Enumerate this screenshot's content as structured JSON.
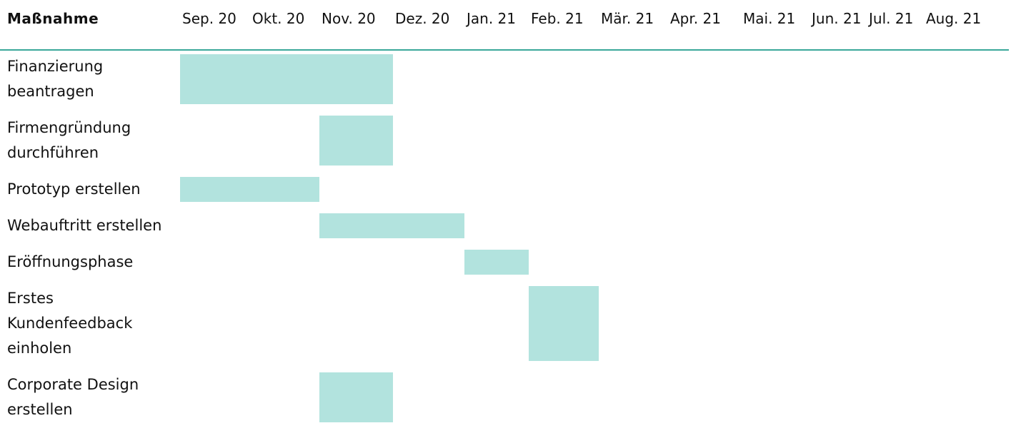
{
  "chart_data": {
    "type": "gantt",
    "header": "Maßnahme",
    "x": [
      "Sep. 20",
      "Okt. 20",
      "Nov. 20",
      "Dez. 20",
      "Jan. 21",
      "Feb. 21",
      "Mär. 21",
      "Apr. 21",
      "Mai. 21",
      "Jun. 21",
      "Jul. 21",
      "Aug. 21"
    ],
    "color": "#b2e3de",
    "tasks": [
      {
        "label": "Finanzierung beantragen",
        "start": "Sep. 20",
        "end": "Nov. 20"
      },
      {
        "label": "Firmengründung durchführen",
        "start": "Nov. 20",
        "end": "Nov. 20"
      },
      {
        "label": "Prototyp erstellen",
        "start": "Sep. 20",
        "end": "Okt. 20"
      },
      {
        "label": "Webauftritt erstellen",
        "start": "Nov. 20",
        "end": "Dez. 20"
      },
      {
        "label": "Eröffnungsphase",
        "start": "Jan. 21",
        "end": "Jan. 21"
      },
      {
        "label": "Erstes Kundenfeedback einholen",
        "start": "Feb. 21",
        "end": "Feb. 21"
      },
      {
        "label": "Corporate Design erstellen",
        "start": "Nov. 20",
        "end": "Nov. 20"
      }
    ]
  }
}
